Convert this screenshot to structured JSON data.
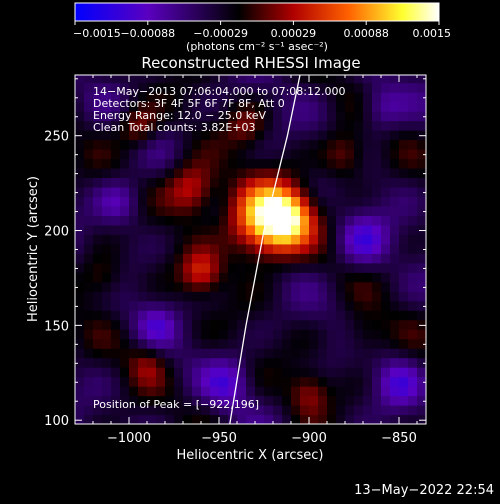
{
  "chart_data": {
    "type": "heatmap",
    "title": "Reconstructed RHESSI Image",
    "xlabel": "Heliocentric X (arcsec)",
    "ylabel": "Heliocentric Y (arcsec)",
    "xlim": [
      -1030,
      -835
    ],
    "ylim": [
      98,
      282
    ],
    "x_ticks": [
      -1000,
      -950,
      -900,
      -850
    ],
    "x_tick_labels": [
      "−1000",
      "−950",
      "−900",
      "−850"
    ],
    "y_ticks": [
      100,
      150,
      200,
      250
    ],
    "y_tick_labels": [
      "100",
      "150",
      "200",
      "250"
    ],
    "colorbar": {
      "range": [
        -0.0015,
        0.0015
      ],
      "tick_labels": [
        "−0.0015",
        "−0.00088",
        "−0.00029",
        "0.00029",
        "0.00088",
        "0.0015"
      ],
      "unit_label": "(photons cm⁻² s⁻¹ asec⁻²)",
      "colors": [
        "#0000ff",
        "#5a00c0",
        "#000000",
        "#b00000",
        "#ff6000",
        "#ffff30",
        "#ffffff"
      ]
    },
    "annotations": [
      "14−May−2013 07:06:04.000 to 07:08:12.000",
      "Detectors: 3F 4F 5F 6F 7F 8F, Att 0",
      "Energy Range: 12.0 − 25.0 keV",
      "Clean     Total counts: 3.82E+03"
    ],
    "peak_label": "Position of Peak = [−922,196]",
    "peak": {
      "x": -922,
      "y": 196
    },
    "limb_curve": [
      [
        -944,
        98
      ],
      [
        -935,
        150
      ],
      [
        -925,
        200
      ],
      [
        -912,
        250
      ],
      [
        -905,
        282
      ]
    ],
    "sources": [
      {
        "x": -925,
        "y": 205,
        "amp": 0.0015,
        "sigma": 14
      },
      {
        "x": -912,
        "y": 207,
        "amp": 0.0011,
        "sigma": 10
      },
      {
        "x": -965,
        "y": 222,
        "amp": 0.0009,
        "sigma": 10
      },
      {
        "x": -960,
        "y": 178,
        "amp": 0.0007,
        "sigma": 8
      },
      {
        "x": -995,
        "y": 255,
        "amp": 0.0006,
        "sigma": 8
      },
      {
        "x": -880,
        "y": 240,
        "amp": 0.0006,
        "sigma": 9
      },
      {
        "x": -1015,
        "y": 175,
        "amp": 0.0005,
        "sigma": 9
      },
      {
        "x": -990,
        "y": 130,
        "amp": 0.0004,
        "sigma": 8
      },
      {
        "x": -870,
        "y": 145,
        "amp": 0.0004,
        "sigma": 9
      },
      {
        "x": -900,
        "y": 115,
        "amp": 0.0005,
        "sigma": 8
      },
      {
        "x": -935,
        "y": 255,
        "amp": 0.0004,
        "sigma": 8
      },
      {
        "x": -1005,
        "y": 215,
        "amp": -0.0005,
        "sigma": 9
      },
      {
        "x": -870,
        "y": 195,
        "amp": -0.0006,
        "sigma": 10
      },
      {
        "x": -985,
        "y": 150,
        "amp": -0.0004,
        "sigma": 8
      },
      {
        "x": -860,
        "y": 265,
        "amp": -0.0005,
        "sigma": 9
      },
      {
        "x": -945,
        "y": 120,
        "amp": -0.0005,
        "sigma": 9
      },
      {
        "x": -850,
        "y": 120,
        "amp": -0.0005,
        "sigma": 9
      }
    ]
  },
  "footer": {
    "timestamp": "13−May−2022 22:54"
  }
}
